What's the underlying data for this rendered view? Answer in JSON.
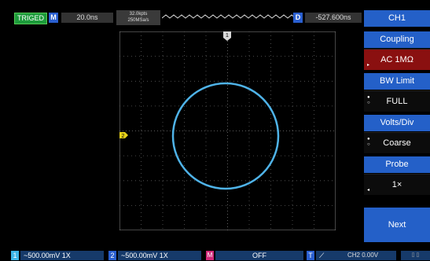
{
  "header": {
    "trig_status": "TRIGED",
    "main_label": "M",
    "timebase": "20.0ns",
    "acq_points": "32.0kpts",
    "acq_rate": "250MSa/s",
    "delay_label": "D",
    "delay_value": "-527.600ns",
    "channel_title": "CH1"
  },
  "menu": {
    "coupling_label": "Coupling",
    "coupling_value": "AC 1MΩ",
    "bwlimit_label": "BW Limit",
    "bwlimit_value": "FULL",
    "voltsdiv_label": "Volts/Div",
    "voltsdiv_value": "Coarse",
    "probe_label": "Probe",
    "probe_value": "1×",
    "next_label": "Next"
  },
  "bottom": {
    "ch1_num": "1",
    "ch1_text": "~500.00mV 1X",
    "ch2_num": "2",
    "ch2_text": "~500.00mV 1X",
    "math_label": "M",
    "math_text": "OFF",
    "trigger_label": "T",
    "trigger_text": "CH2 0.00V"
  },
  "markers": {
    "ch1_marker": "1",
    "ch2_marker": "2"
  },
  "colors": {
    "trace": "#4fb3e8",
    "grid": "#6a6a6a",
    "menu_blue": "#2460c8",
    "selected": "#8a1010",
    "trig_green": "#1d9b3b",
    "ch2_marker": "#e8d21a"
  }
}
